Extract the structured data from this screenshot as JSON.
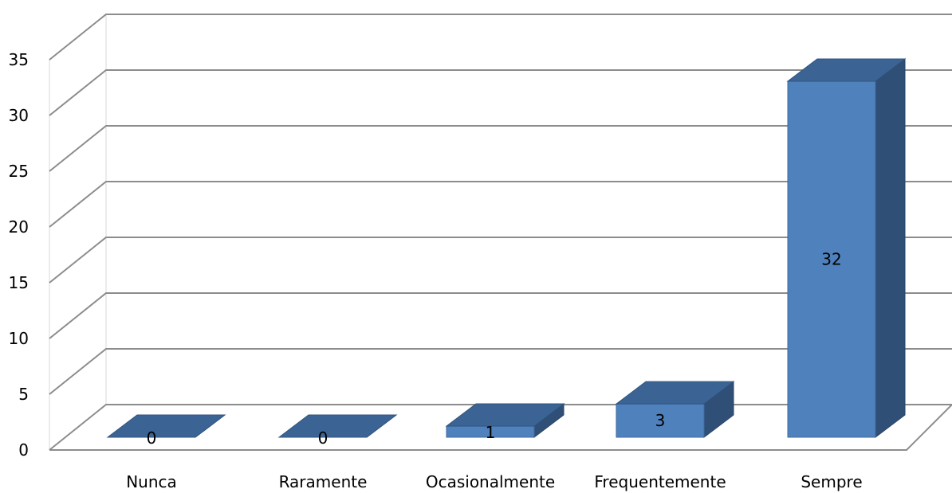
{
  "chart_data": {
    "type": "bar",
    "style": "3d-column",
    "categories": [
      "Nunca",
      "Raramente",
      "Ocasionalmente",
      "Frequentemente",
      "Sempre"
    ],
    "values": [
      0,
      0,
      1,
      3,
      32
    ],
    "data_labels": [
      "0",
      "0",
      "1",
      "3",
      "32"
    ],
    "title": "",
    "xlabel": "",
    "ylabel": "",
    "ylim": [
      0,
      35
    ],
    "yticks": [
      0,
      5,
      10,
      15,
      20,
      25,
      30,
      35
    ],
    "grid": true,
    "legend": "none",
    "colors": {
      "bar_front": "#4F81BD",
      "bar_top": "#3B6494",
      "bar_side": "#2F4F77",
      "gridline": "#8C8C8C"
    }
  }
}
